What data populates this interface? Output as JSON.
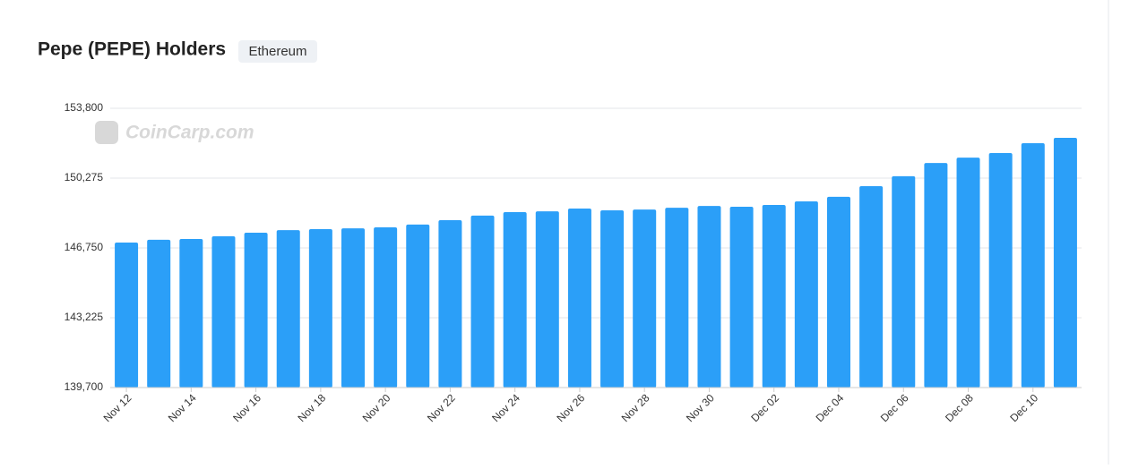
{
  "chart_data": {
    "type": "bar",
    "title": "Pepe (PEPE) Holders",
    "badge": "Ethereum",
    "watermark": "CoinCarp.com",
    "categories": [
      "Nov 12",
      null,
      "Nov 14",
      null,
      "Nov 16",
      null,
      "Nov 18",
      null,
      "Nov 20",
      null,
      "Nov 22",
      null,
      "Nov 24",
      null,
      "Nov 26",
      null,
      "Nov 28",
      null,
      "Nov 30",
      null,
      "Dec 02",
      null,
      "Dec 04",
      null,
      "Dec 06",
      null,
      "Dec 08",
      null,
      "Dec 10",
      null
    ],
    "values": [
      147020,
      147160,
      147200,
      147340,
      147520,
      147650,
      147700,
      147740,
      147790,
      147930,
      148150,
      148380,
      148560,
      148600,
      148740,
      148650,
      148690,
      148780,
      148870,
      148830,
      148920,
      149100,
      149330,
      149870,
      150370,
      151040,
      151310,
      151540,
      152040,
      152310
    ],
    "color": "#2b9ff8",
    "ylim": [
      139700,
      153800
    ],
    "yticks": [
      {
        "value": 139700,
        "label": "139,700"
      },
      {
        "value": 143225,
        "label": "143,225"
      },
      {
        "value": 146750,
        "label": "146,750"
      },
      {
        "value": 150275,
        "label": "150,275"
      },
      {
        "value": 153800,
        "label": "153,800"
      }
    ],
    "grid": true
  }
}
